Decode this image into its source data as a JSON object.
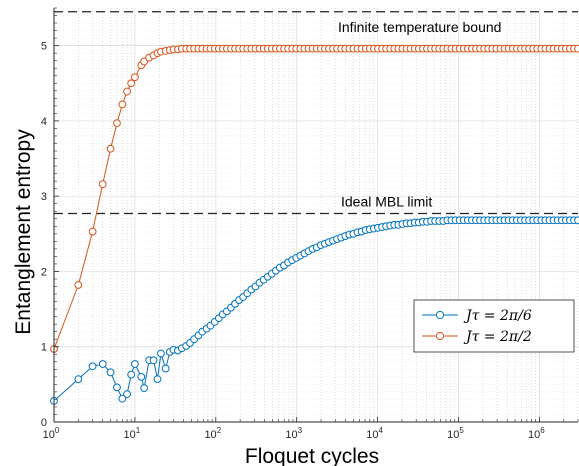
{
  "chart_data": {
    "type": "line",
    "title": "",
    "xlabel": "Floquet cycles",
    "ylabel": "Entanglement entropy",
    "xscale": "log",
    "xlim": [
      1,
      3000000
    ],
    "ylim": [
      0,
      5.5
    ],
    "yticks": [
      "0",
      "1",
      "2",
      "3",
      "4",
      "5"
    ],
    "xticks": [
      {
        "base": "10",
        "exp": "0"
      },
      {
        "base": "10",
        "exp": "1"
      },
      {
        "base": "10",
        "exp": "2"
      },
      {
        "base": "10",
        "exp": "3"
      },
      {
        "base": "10",
        "exp": "4"
      },
      {
        "base": "10",
        "exp": "5"
      },
      {
        "base": "10",
        "exp": "6"
      }
    ],
    "grid": true,
    "legend_position": "lower-right",
    "reference_lines": [
      {
        "label": "Infinite temperature bound",
        "y": 5.45
      },
      {
        "label": "Ideal MBL limit",
        "y": 2.77
      }
    ],
    "series": [
      {
        "name": "Jτ = 2π/6",
        "color": "#0072BD",
        "x": [
          1,
          2,
          3,
          4,
          5,
          6,
          7,
          8,
          9,
          10,
          12,
          13,
          15,
          17,
          19,
          21,
          24,
          27,
          30,
          34,
          38,
          43,
          48,
          54,
          61,
          68,
          77,
          86,
          97,
          109,
          122,
          137,
          154,
          173,
          194,
          218,
          245,
          275,
          309,
          347,
          390,
          438,
          492,
          552,
          620,
          697,
          783,
          879,
          987,
          1109,
          1245,
          1399,
          1571,
          1765,
          1982,
          2227,
          2501,
          2810,
          3156,
          3545,
          3982,
          4473,
          5025,
          5644,
          6340,
          7122,
          8000,
          8986,
          10094,
          11339,
          12737,
          14307,
          16071,
          18052,
          20278,
          22778,
          25586,
          28740,
          32283,
          36263,
          40734,
          45756,
          51397,
          57733,
          64851,
          72846,
          81826,
          91914,
          103245,
          115974,
          130271,
          146331,
          164371,
          184635,
          207397,
          232966,
          261687,
          293948,
          330187,
          370893,
          416618,
          467980,
          525674,
          590480,
          663275,
          745046,
          836897,
          940073,
          1055968,
          1186151,
          1332383,
          1496643,
          1681153,
          1888409,
          2121214,
          2382716,
          2676514,
          3000000
        ],
        "y": [
          0.28,
          0.57,
          0.74,
          0.77,
          0.66,
          0.46,
          0.31,
          0.37,
          0.63,
          0.77,
          0.6,
          0.45,
          0.82,
          0.82,
          0.57,
          0.91,
          0.71,
          0.93,
          0.96,
          0.95,
          0.98,
          1.01,
          1.05,
          1.1,
          1.15,
          1.2,
          1.24,
          1.28,
          1.33,
          1.38,
          1.43,
          1.47,
          1.52,
          1.57,
          1.62,
          1.66,
          1.71,
          1.76,
          1.8,
          1.85,
          1.89,
          1.93,
          1.97,
          2.01,
          2.05,
          2.08,
          2.12,
          2.15,
          2.18,
          2.21,
          2.24,
          2.27,
          2.3,
          2.32,
          2.35,
          2.37,
          2.39,
          2.41,
          2.43,
          2.45,
          2.47,
          2.49,
          2.5,
          2.52,
          2.53,
          2.55,
          2.56,
          2.57,
          2.58,
          2.59,
          2.6,
          2.61,
          2.62,
          2.62,
          2.63,
          2.64,
          2.64,
          2.65,
          2.65,
          2.66,
          2.66,
          2.67,
          2.67,
          2.67,
          2.67,
          2.68,
          2.68,
          2.68,
          2.68,
          2.68,
          2.68,
          2.68,
          2.68,
          2.68,
          2.68,
          2.68,
          2.68,
          2.68,
          2.68,
          2.68,
          2.68,
          2.68,
          2.68,
          2.68,
          2.68,
          2.68,
          2.68,
          2.68,
          2.68,
          2.68,
          2.68,
          2.68,
          2.68,
          2.68,
          2.68,
          2.68,
          2.68,
          2.68
        ]
      },
      {
        "name": "Jτ = 2π/2",
        "color": "#D95319",
        "x": [
          1,
          2,
          3,
          4,
          5,
          6,
          7,
          8,
          9,
          10,
          12,
          13,
          15,
          17,
          19,
          21,
          24,
          27,
          30,
          34,
          38,
          43,
          48,
          54,
          61,
          68,
          77,
          86,
          97,
          109,
          122,
          137,
          154,
          173,
          194,
          218,
          245,
          275,
          309,
          347,
          390,
          438,
          492,
          552,
          620,
          697,
          783,
          879,
          987,
          1109,
          1245,
          1399,
          1571,
          1765,
          1982,
          2227,
          2501,
          2810,
          3156,
          3545,
          3982,
          4473,
          5025,
          5644,
          6340,
          7122,
          8000,
          8986,
          10094,
          11339,
          12737,
          14307,
          16071,
          18052,
          20278,
          22778,
          25586,
          28740,
          32283,
          36263,
          40734,
          45756,
          51397,
          57733,
          64851,
          72846,
          81826,
          91914,
          103245,
          115974,
          130271,
          146331,
          164371,
          184635,
          207397,
          232966,
          261687,
          293948,
          330187,
          370893,
          416618,
          467980,
          525674,
          590480,
          663275,
          745046,
          836897,
          940073,
          1055968,
          1186151,
          1332383,
          1496643,
          1681153,
          1888409,
          2121214,
          2382716,
          2676514,
          3000000
        ],
        "y": [
          0.97,
          1.82,
          2.53,
          3.16,
          3.63,
          3.97,
          4.22,
          4.39,
          4.5,
          4.58,
          4.74,
          4.79,
          4.84,
          4.87,
          4.9,
          4.92,
          4.93,
          4.94,
          4.95,
          4.95,
          4.96,
          4.96,
          4.96,
          4.96,
          4.96,
          4.96,
          4.96,
          4.96,
          4.96,
          4.96,
          4.96,
          4.96,
          4.96,
          4.96,
          4.96,
          4.96,
          4.96,
          4.96,
          4.96,
          4.96,
          4.96,
          4.96,
          4.96,
          4.96,
          4.96,
          4.96,
          4.96,
          4.96,
          4.96,
          4.96,
          4.96,
          4.96,
          4.96,
          4.96,
          4.96,
          4.96,
          4.96,
          4.96,
          4.96,
          4.96,
          4.96,
          4.96,
          4.96,
          4.96,
          4.96,
          4.96,
          4.96,
          4.96,
          4.96,
          4.96,
          4.96,
          4.96,
          4.96,
          4.96,
          4.96,
          4.96,
          4.96,
          4.96,
          4.96,
          4.96,
          4.96,
          4.96,
          4.96,
          4.96,
          4.96,
          4.96,
          4.96,
          4.96,
          4.96,
          4.96,
          4.96,
          4.96,
          4.96,
          4.96,
          4.96,
          4.96,
          4.96,
          4.96,
          4.96,
          4.96,
          4.96,
          4.96,
          4.96,
          4.96,
          4.96,
          4.96,
          4.96,
          4.96,
          4.96,
          4.96,
          4.96,
          4.96,
          4.96,
          4.96,
          4.96,
          4.96,
          4.96,
          4.96
        ]
      }
    ]
  }
}
